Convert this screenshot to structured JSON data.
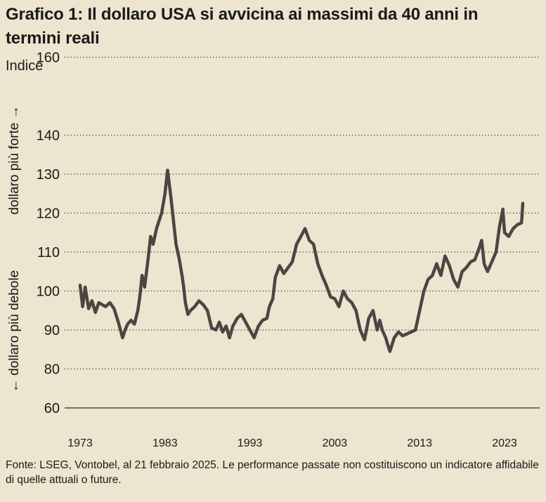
{
  "title": "Grafico 1: Il dollaro USA si avvicina ai massimi da 40 anni in termini reali",
  "subtitle": "Indice",
  "source": "Fonte: LSEG, Vontobel, al 21 febbraio 2025. Le performance passate non costituiscono un indicatore affidabile di quelle attuali o future.",
  "colors": {
    "background": "#ede5cf",
    "line": "#4a4642",
    "grid": "#2a2a2a"
  },
  "chart_data": {
    "type": "line",
    "title": "Grafico 1: Il dollaro USA si avvicina ai massimi da 40 anni in termini reali",
    "ylabel": "Indice",
    "ylabel_strong": "dollaro più forte →",
    "ylabel_weak": "← dollaro più debole",
    "y_ticks": [
      60,
      80,
      90,
      100,
      110,
      120,
      130,
      140,
      160
    ],
    "y_tick_labels": [
      "60",
      "80",
      "90",
      "100",
      "110",
      "120",
      "130",
      "140",
      "160"
    ],
    "x_ticks": [
      1973,
      1983,
      1993,
      2003,
      2013,
      2023
    ],
    "x_tick_labels": [
      "1973",
      "1983",
      "1993",
      "2003",
      "2013",
      "2023"
    ],
    "grid": "dotted horizontal",
    "series": [
      {
        "x": [
          1973.0,
          1973.3,
          1973.6,
          1974.0,
          1974.4,
          1974.8,
          1975.2,
          1975.6,
          1976.0,
          1976.5,
          1977.0,
          1977.5,
          1978.0,
          1978.3,
          1978.6,
          1979.0,
          1979.4,
          1979.8,
          1980.0,
          1980.3,
          1980.6,
          1981.0,
          1981.3,
          1981.6,
          1982.0,
          1982.3,
          1982.6,
          1983.0,
          1983.3,
          1983.7,
          1984.0,
          1984.3,
          1984.7,
          1985.0,
          1985.2,
          1985.4,
          1985.7,
          1986.0,
          1986.5,
          1987.0,
          1987.5,
          1988.0,
          1988.5,
          1989.0,
          1989.4,
          1989.8,
          1990.2,
          1990.6,
          1991.0,
          1991.5,
          1992.0,
          1992.5,
          1993.0,
          1993.5,
          1994.0,
          1994.5,
          1995.0,
          1995.3,
          1995.7,
          1996.0,
          1996.5,
          1997.0,
          1997.5,
          1998.0,
          1998.5,
          1999.0,
          1999.5,
          2000.0,
          2000.5,
          2001.0,
          2001.5,
          2002.0,
          2002.5,
          2003.0,
          2003.5,
          2004.0,
          2004.5,
          2005.0,
          2005.5,
          2006.0,
          2006.5,
          2007.0,
          2007.5,
          2008.0,
          2008.3,
          2008.6,
          2009.0,
          2009.2,
          2009.5,
          2010.0,
          2010.5,
          2011.0,
          2011.5,
          2012.0,
          2012.5,
          2013.0,
          2013.5,
          2014.0,
          2014.5,
          2015.0,
          2015.5,
          2016.0,
          2016.5,
          2017.0,
          2017.5,
          2018.0,
          2018.5,
          2019.0,
          2019.5,
          2020.0,
          2020.3,
          2020.6,
          2021.0,
          2021.5,
          2022.0,
          2022.4,
          2022.8,
          2023.0,
          2023.5,
          2024.0,
          2024.5,
          2025.0,
          2025.15
        ],
        "values": [
          101.5,
          96.0,
          101.0,
          95.5,
          97.5,
          94.5,
          97.0,
          96.5,
          96.0,
          97.0,
          95.5,
          92.0,
          88.0,
          90.0,
          91.5,
          92.5,
          91.5,
          95.0,
          98.0,
          104.0,
          101.0,
          108.0,
          114.0,
          112.0,
          116.0,
          118.0,
          120.0,
          125.0,
          131.0,
          124.0,
          118.0,
          112.0,
          108.0,
          104.0,
          101.0,
          97.0,
          94.0,
          95.0,
          96.0,
          97.5,
          96.5,
          95.0,
          90.5,
          90.0,
          92.0,
          89.5,
          91.0,
          88.0,
          91.0,
          93.0,
          94.0,
          92.0,
          90.0,
          88.0,
          91.0,
          92.5,
          93.0,
          96.0,
          98.0,
          103.5,
          106.5,
          104.5,
          106.0,
          107.5,
          112.0,
          114.0,
          116.0,
          113.0,
          112.0,
          107.0,
          104.0,
          101.5,
          98.5,
          98.0,
          96.0,
          100.0,
          98.0,
          97.0,
          95.0,
          90.0,
          87.5,
          93.0,
          95.0,
          90.0,
          92.5,
          90.0,
          88.0,
          86.5,
          84.5,
          88.0,
          89.5,
          88.5,
          89.0,
          89.5,
          90.0,
          95.0,
          100.0,
          103.0,
          104.0,
          107.0,
          104.0,
          109.0,
          106.5,
          103.0,
          101.0,
          105.0,
          106.0,
          107.5,
          108.0,
          111.0,
          113.0,
          107.0,
          105.0,
          107.5,
          110.0,
          116.5,
          121.0,
          115.0,
          114.0,
          116.0,
          117.0,
          117.5,
          122.5
        ]
      }
    ]
  }
}
